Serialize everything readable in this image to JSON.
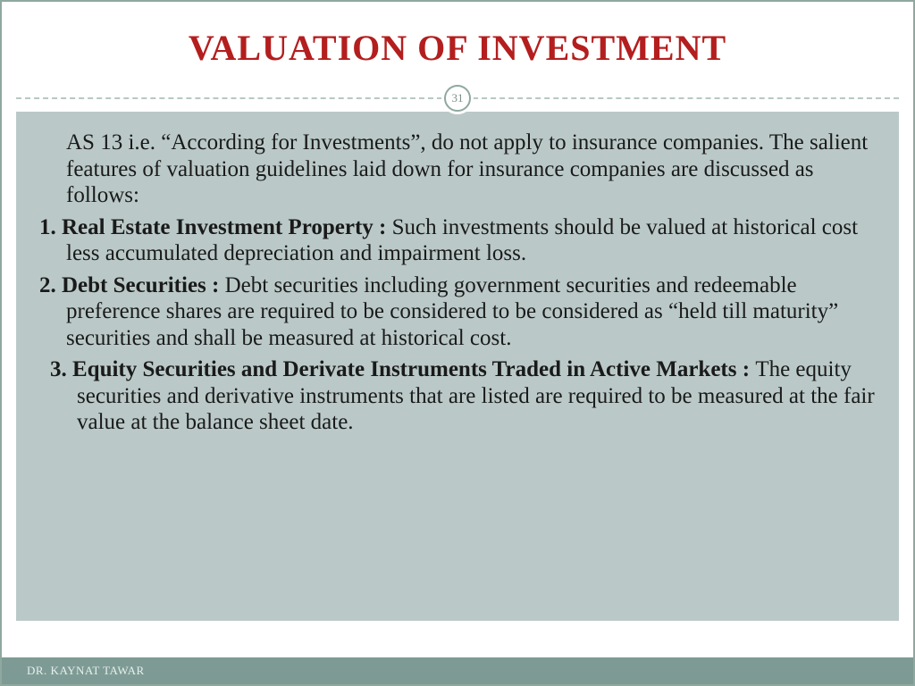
{
  "slide": {
    "title": "VALUATION OF INVESTMENT",
    "page_number": "31",
    "intro": "AS 13 i.e. “According for Investments”, do not apply to insurance companies. The salient features of valuation guidelines laid down for insurance companies are discussed as follows:",
    "point1_label": "1. Real Estate Investment Property : ",
    "point1_text": "Such investments should be valued at historical cost less accumulated depreciation and impairment loss.",
    "point2_label": "2. Debt Securities : ",
    "point2_text": "Debt securities including government securities and redeemable preference shares are required to be considered to be considered as “held till maturity” securities and shall be measured at historical cost.",
    "point3_label": "3. Equity Securities and Derivate Instruments Traded in Active Markets : ",
    "point3_text": "The equity securities and derivative instruments that are listed are required to be measured at the fair value at the balance sheet date.",
    "footer": "DR. KAYNAT  TAWAR"
  },
  "style": {
    "title_color": "#b41e1e",
    "title_fontsize": 40,
    "body_fontsize": 25,
    "body_bg": "#bac9c8",
    "border_color": "#8fa8a0",
    "footer_bg": "#7d9b94",
    "footer_color": "#e8efed",
    "text_color": "#1a1a1a",
    "dash_color": "#b8c8c2",
    "slide_width": 1024,
    "slide_height": 768
  }
}
